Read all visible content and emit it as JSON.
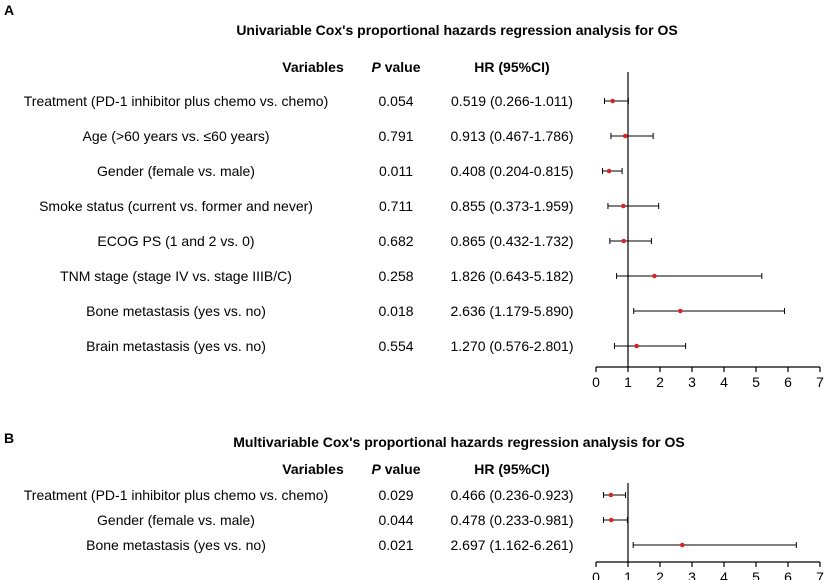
{
  "colors": {
    "point": "#d62728",
    "line": "#000000"
  },
  "headers": {
    "variables": "Variables",
    "p_italic": "P",
    "p_rest": " value",
    "hr": "HR (95%CI)"
  },
  "panels": [
    {
      "letter": "A",
      "title": "Univariable Cox's proportional hazards regression analysis for OS",
      "rows": [
        {
          "variable": "Treatment (PD-1 inhibitor plus chemo vs. chemo)",
          "p": "0.054",
          "hr_text": "0.519 (0.266-1.011)"
        },
        {
          "variable": "Age (>60 years vs. ≤60 years)",
          "p": "0.791",
          "hr_text": "0.913 (0.467-1.786)"
        },
        {
          "variable": "Gender (female vs. male)",
          "p": "0.011",
          "hr_text": "0.408 (0.204-0.815)"
        },
        {
          "variable": "Smoke status (current vs. former and never)",
          "p": "0.711",
          "hr_text": "0.855 (0.373-1.959)"
        },
        {
          "variable": "ECOG PS (1 and 2 vs. 0)",
          "p": "0.682",
          "hr_text": "0.865 (0.432-1.732)"
        },
        {
          "variable": "TNM stage (stage IV vs. stage IIIB/C)",
          "p": "0.258",
          "hr_text": "1.826 (0.643-5.182)"
        },
        {
          "variable": "Bone metastasis (yes vs. no)",
          "p": "0.018",
          "hr_text": "2.636 (1.179-5.890)"
        },
        {
          "variable": "Brain metastasis (yes vs. no)",
          "p": "0.554",
          "hr_text": "1.270 (0.576-2.801)"
        }
      ]
    },
    {
      "letter": "B",
      "title": "Multivariable Cox's proportional hazards regression analysis for OS",
      "rows": [
        {
          "variable": "Treatment (PD-1 inhibitor plus chemo vs. chemo)",
          "p": "0.029",
          "hr_text": "0.466 (0.236-0.923)"
        },
        {
          "variable": "Gender (female vs. male)",
          "p": "0.044",
          "hr_text": "0.478 (0.233-0.981)"
        },
        {
          "variable": "Bone metastasis (yes vs. no)",
          "p": "0.021",
          "hr_text": "2.697 (1.162-6.261)"
        }
      ]
    }
  ],
  "chart_data": [
    {
      "type": "forest",
      "title": "Univariable Cox's proportional hazards regression analysis for OS",
      "reference_line": 1,
      "xlim": [
        0,
        7
      ],
      "xticks": [
        0,
        1,
        2,
        3,
        4,
        5,
        6,
        7
      ],
      "series": [
        {
          "name": "Treatment (PD-1 inhibitor plus chemo vs. chemo)",
          "hr": 0.519,
          "lower": 0.266,
          "upper": 1.011
        },
        {
          "name": "Age (>60 years vs. ≤60 years)",
          "hr": 0.913,
          "lower": 0.467,
          "upper": 1.786
        },
        {
          "name": "Gender (female vs. male)",
          "hr": 0.408,
          "lower": 0.204,
          "upper": 0.815
        },
        {
          "name": "Smoke status (current vs. former and never)",
          "hr": 0.855,
          "lower": 0.373,
          "upper": 1.959
        },
        {
          "name": "ECOG PS (1 and 2 vs. 0)",
          "hr": 0.865,
          "lower": 0.432,
          "upper": 1.732
        },
        {
          "name": "TNM stage (stage IV vs. stage IIIB/C)",
          "hr": 1.826,
          "lower": 0.643,
          "upper": 5.182
        },
        {
          "name": "Bone metastasis (yes vs. no)",
          "hr": 2.636,
          "lower": 1.179,
          "upper": 5.89
        },
        {
          "name": "Brain metastasis (yes vs. no)",
          "hr": 1.27,
          "lower": 0.576,
          "upper": 2.801
        }
      ]
    },
    {
      "type": "forest",
      "title": "Multivariable Cox's proportional hazards regression analysis for OS",
      "reference_line": 1,
      "xlim": [
        0,
        7
      ],
      "xticks": [
        0,
        1,
        2,
        3,
        4,
        5,
        6,
        7
      ],
      "series": [
        {
          "name": "Treatment (PD-1 inhibitor plus chemo vs. chemo)",
          "hr": 0.466,
          "lower": 0.236,
          "upper": 0.923
        },
        {
          "name": "Gender (female vs. male)",
          "hr": 0.478,
          "lower": 0.233,
          "upper": 0.981
        },
        {
          "name": "Bone metastasis (yes vs. no)",
          "hr": 2.697,
          "lower": 1.162,
          "upper": 6.261
        }
      ]
    }
  ]
}
